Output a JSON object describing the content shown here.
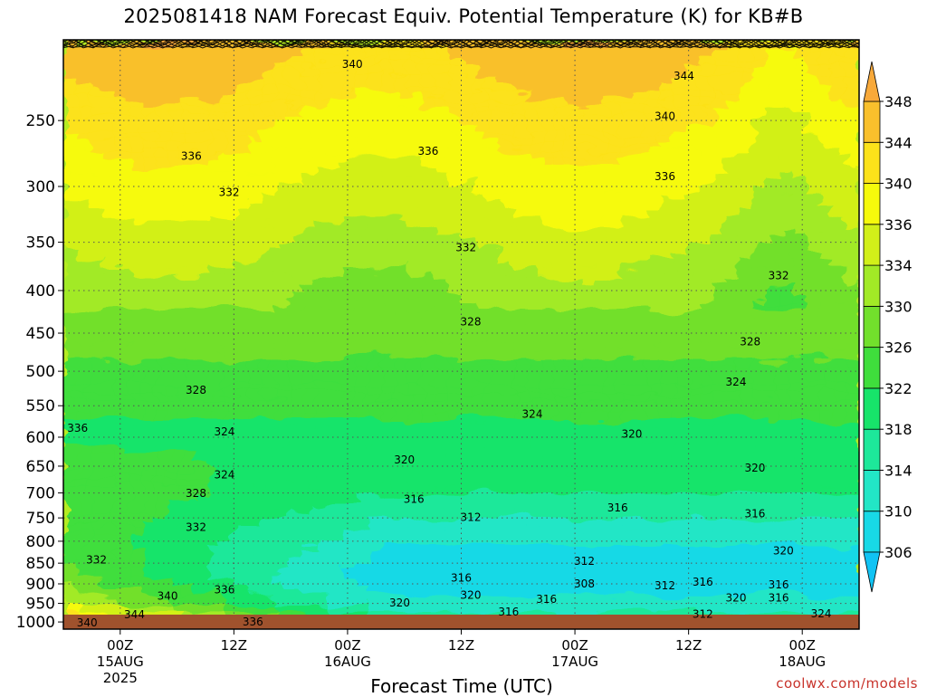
{
  "chart_data": {
    "type": "heatmap",
    "title": "2025081418 NAM Forecast Equiv. Potential Temperature (K) for KB#B",
    "xlabel": "Forecast Time (UTC)",
    "ylabel": "",
    "y_ticks": [
      250,
      300,
      350,
      400,
      450,
      500,
      550,
      600,
      650,
      700,
      750,
      800,
      850,
      900,
      950,
      1000
    ],
    "y_range": [
      200,
      1020
    ],
    "y_scale": "log",
    "y_inverted": true,
    "x_ticks": [
      {
        "hour": 6,
        "label": "00Z",
        "date": "15AUG",
        "year": "2025"
      },
      {
        "hour": 18,
        "label": "12Z",
        "date": "",
        "year": ""
      },
      {
        "hour": 30,
        "label": "00Z",
        "date": "16AUG",
        "year": ""
      },
      {
        "hour": 42,
        "label": "12Z",
        "date": "",
        "year": ""
      },
      {
        "hour": 54,
        "label": "00Z",
        "date": "17AUG",
        "year": ""
      },
      {
        "hour": 66,
        "label": "12Z",
        "date": "",
        "year": ""
      },
      {
        "hour": 78,
        "label": "00Z",
        "date": "18AUG",
        "year": ""
      }
    ],
    "x_range": [
      0,
      84
    ],
    "grid": true,
    "colorbar": {
      "levels": [
        306,
        310,
        314,
        318,
        322,
        326,
        330,
        334,
        336,
        340,
        344,
        348
      ],
      "colors": [
        "#11c3f4",
        "#18d9e6",
        "#22e6c6",
        "#1de89a",
        "#17e46a",
        "#3fde3c",
        "#72e02c",
        "#a2ea26",
        "#d2f019",
        "#f6fa0c",
        "#fce21a",
        "#f9c02c",
        "#f8a93a"
      ],
      "extend": "both"
    },
    "contour_labels": [
      {
        "text": "340",
        "x": 30.5,
        "p": 214
      },
      {
        "text": "344",
        "x": 65.5,
        "p": 221
      },
      {
        "text": "340",
        "x": 63.5,
        "p": 247
      },
      {
        "text": "336",
        "x": 13.5,
        "p": 276
      },
      {
        "text": "336",
        "x": 38.5,
        "p": 272
      },
      {
        "text": "336",
        "x": 63.5,
        "p": 292
      },
      {
        "text": "332",
        "x": 17.5,
        "p": 305
      },
      {
        "text": "332",
        "x": 42.5,
        "p": 355
      },
      {
        "text": "332",
        "x": 75.5,
        "p": 384
      },
      {
        "text": "328",
        "x": 43.0,
        "p": 436
      },
      {
        "text": "328",
        "x": 72.5,
        "p": 461
      },
      {
        "text": "324",
        "x": 71.0,
        "p": 515
      },
      {
        "text": "328",
        "x": 14.0,
        "p": 527
      },
      {
        "text": "324",
        "x": 49.5,
        "p": 563
      },
      {
        "text": "324",
        "x": 17.0,
        "p": 591
      },
      {
        "text": "320",
        "x": 60.0,
        "p": 595
      },
      {
        "text": "320",
        "x": 36.0,
        "p": 639
      },
      {
        "text": "324",
        "x": 17.0,
        "p": 666
      },
      {
        "text": "320",
        "x": 73.0,
        "p": 653
      },
      {
        "text": "328",
        "x": 14.0,
        "p": 701
      },
      {
        "text": "316",
        "x": 37.0,
        "p": 712
      },
      {
        "text": "316",
        "x": 58.5,
        "p": 729
      },
      {
        "text": "316",
        "x": 73.0,
        "p": 741
      },
      {
        "text": "312",
        "x": 43.0,
        "p": 749
      },
      {
        "text": "336",
        "x": 1.5,
        "p": 585
      },
      {
        "text": "332",
        "x": 14.0,
        "p": 770
      },
      {
        "text": "332",
        "x": 3.5,
        "p": 842
      },
      {
        "text": "320",
        "x": 76.0,
        "p": 821
      },
      {
        "text": "312",
        "x": 55.0,
        "p": 845
      },
      {
        "text": "316",
        "x": 42.0,
        "p": 885
      },
      {
        "text": "308",
        "x": 55.0,
        "p": 900
      },
      {
        "text": "312",
        "x": 63.5,
        "p": 905
      },
      {
        "text": "316",
        "x": 67.5,
        "p": 895
      },
      {
        "text": "316",
        "x": 75.5,
        "p": 902
      },
      {
        "text": "336",
        "x": 17.0,
        "p": 915
      },
      {
        "text": "340",
        "x": 11.0,
        "p": 931
      },
      {
        "text": "320",
        "x": 43.0,
        "p": 929
      },
      {
        "text": "316",
        "x": 51.0,
        "p": 939
      },
      {
        "text": "320",
        "x": 71.0,
        "p": 936
      },
      {
        "text": "316",
        "x": 75.5,
        "p": 936
      },
      {
        "text": "320",
        "x": 35.5,
        "p": 949
      },
      {
        "text": "344",
        "x": 7.5,
        "p": 980
      },
      {
        "text": "316",
        "x": 47.0,
        "p": 973
      },
      {
        "text": "312",
        "x": 67.5,
        "p": 979
      },
      {
        "text": "324",
        "x": 80.0,
        "p": 978
      },
      {
        "text": "340",
        "x": 2.5,
        "p": 1002
      },
      {
        "text": "336",
        "x": 20.0,
        "p": 1000
      }
    ]
  },
  "credit": "coolwx.com/models"
}
